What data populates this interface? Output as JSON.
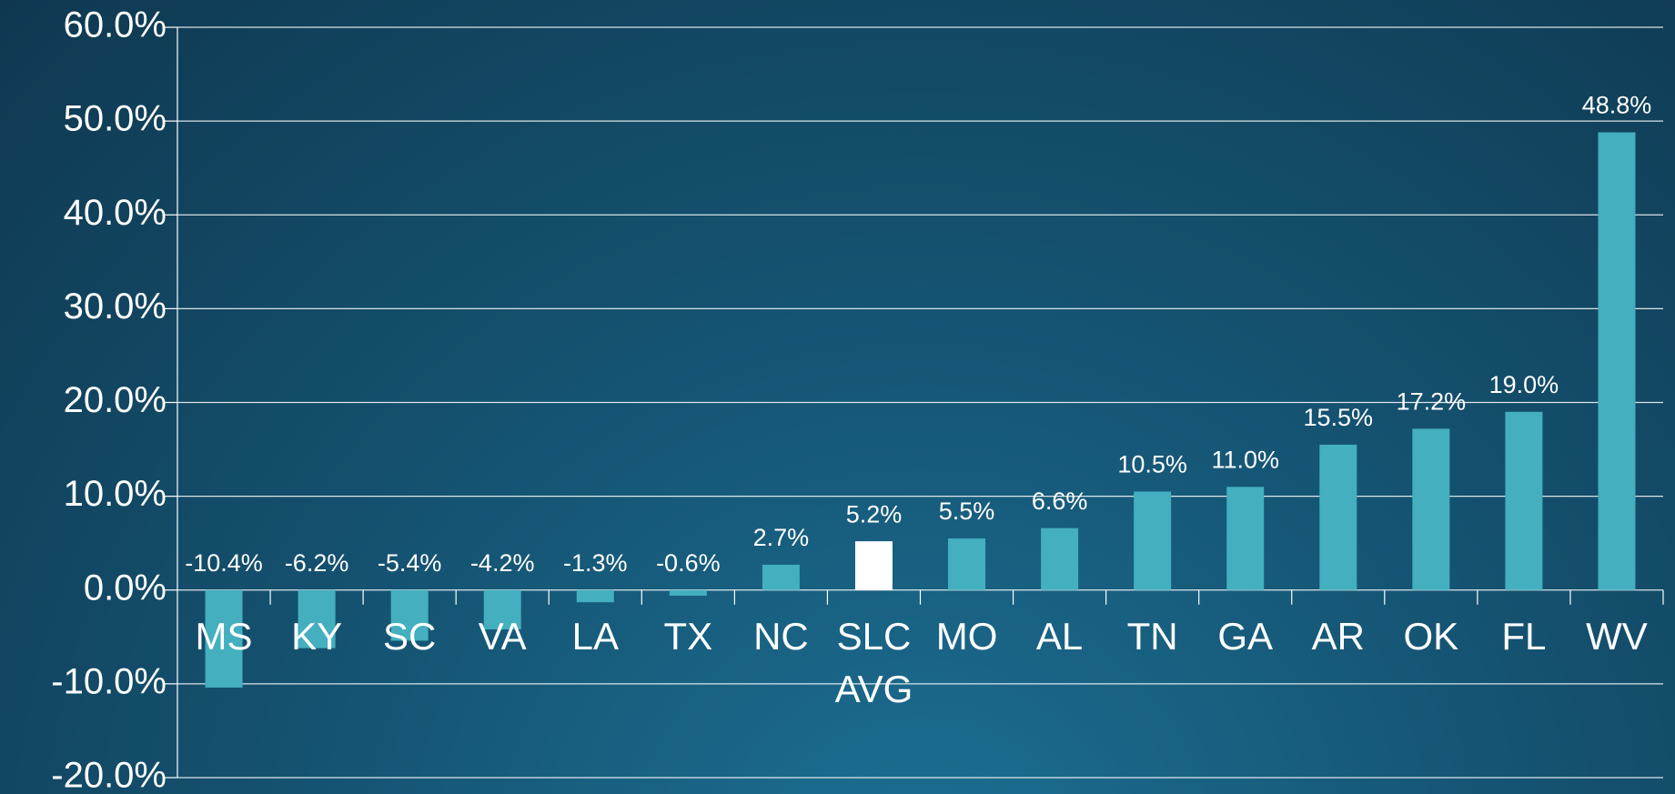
{
  "chart_data": {
    "type": "bar",
    "categories": [
      "MS",
      "KY",
      "SC",
      "VA",
      "LA",
      "TX",
      "NC",
      "SLC AVG",
      "MO",
      "AL",
      "TN",
      "GA",
      "AR",
      "OK",
      "FL",
      "WV"
    ],
    "values": [
      -10.4,
      -6.2,
      -5.4,
      -4.2,
      -1.3,
      -0.6,
      2.7,
      5.2,
      5.5,
      6.6,
      10.5,
      11.0,
      15.5,
      17.2,
      19.0,
      48.8
    ],
    "value_labels": [
      "-10.4%",
      "-6.2%",
      "-5.4%",
      "-4.2%",
      "-1.3%",
      "-0.6%",
      "2.7%",
      "5.2%",
      "5.5%",
      "6.6%",
      "10.5%",
      "11.0%",
      "15.5%",
      "17.2%",
      "19.0%",
      "48.8%"
    ],
    "colors": [
      "#43afbf",
      "#43afbf",
      "#43afbf",
      "#43afbf",
      "#43afbf",
      "#43afbf",
      "#43afbf",
      "#ffffff",
      "#43afbf",
      "#43afbf",
      "#43afbf",
      "#43afbf",
      "#43afbf",
      "#43afbf",
      "#43afbf",
      "#43afbf"
    ],
    "ylim": [
      -20,
      60
    ],
    "yticks": [
      {
        "value": -20,
        "label": "-20.0%"
      },
      {
        "value": -10,
        "label": "-10.0%"
      },
      {
        "value": 0,
        "label": "0.0%"
      },
      {
        "value": 10,
        "label": "10.0%"
      },
      {
        "value": 20,
        "label": "20.0%"
      },
      {
        "value": 30,
        "label": "30.0%"
      },
      {
        "value": 40,
        "label": "40.0%"
      },
      {
        "value": 50,
        "label": "50.0%"
      },
      {
        "value": 60,
        "label": "60.0%"
      }
    ],
    "grid": true
  }
}
